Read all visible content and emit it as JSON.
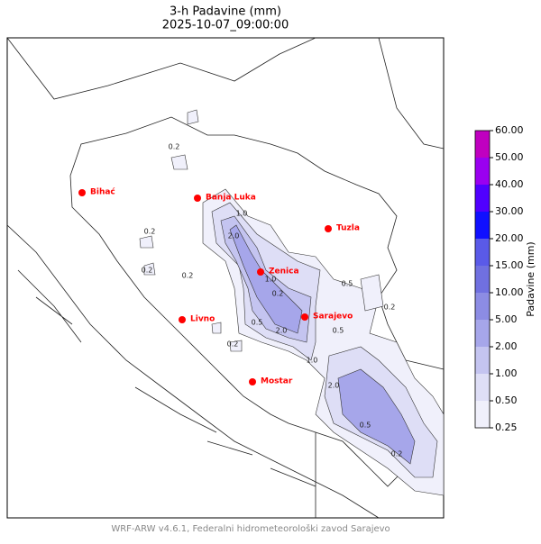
{
  "title": "3-h Padavine (mm)",
  "subtitle": "2025-10-07_09:00:00",
  "footer": "WRF-ARW v4.6.1, Federalni hidrometeorološki zavod Sarajevo",
  "cities": [
    "Bihać",
    "Banja Luka",
    "Zenica",
    "Tuzla",
    "Livno",
    "Sarajevo",
    "Mostar"
  ],
  "city_color": "#ff0000",
  "contour_labels": [
    "0.2",
    "0.2",
    "0.2",
    "0.2",
    "1.0",
    "2.0",
    "1.0",
    "0.2",
    "0.5",
    "0.5",
    "2.0",
    "1.0",
    "0.5",
    "0.2",
    "2.0",
    "0.5",
    "0.2",
    "0.2"
  ],
  "colorbar": {
    "label": "Padavine (mm)",
    "ticks": [
      {
        "value": 0.25,
        "label": "0.25"
      },
      {
        "value": 0.5,
        "label": "0.50"
      },
      {
        "value": 1,
        "label": "1.00"
      },
      {
        "value": 2,
        "label": "2.00"
      },
      {
        "value": 5,
        "label": "5.00"
      },
      {
        "value": 10,
        "label": "10.00"
      },
      {
        "value": 15,
        "label": "15.00"
      },
      {
        "value": 20,
        "label": "20.00"
      },
      {
        "value": 30,
        "label": "30.00"
      },
      {
        "value": 40,
        "label": "40.00"
      },
      {
        "value": 50,
        "label": "50.00"
      },
      {
        "value": 60,
        "label": "60.00"
      }
    ],
    "colors": [
      "#f0f0fb",
      "#dedef6",
      "#c4c4f0",
      "#a6a6ea",
      "#8c8ce4",
      "#7070e0",
      "#5a5ae8",
      "#1010ff",
      "#5000ff",
      "#9a00f0",
      "#c000c0"
    ]
  }
}
